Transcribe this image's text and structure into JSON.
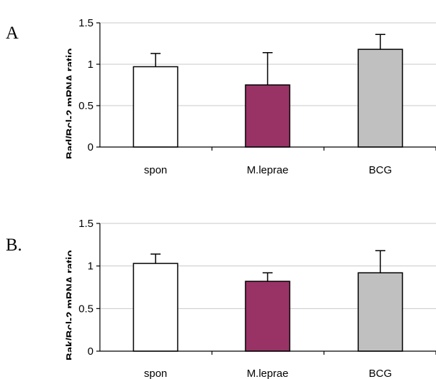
{
  "chart_data": [
    {
      "type": "bar",
      "panel_label": "A",
      "ylabel": "Bad/Bcl-2 mRNA ratio",
      "categories": [
        "spon",
        "M.leprae",
        "BCG"
      ],
      "values": [
        0.97,
        0.75,
        1.18
      ],
      "error_upper": [
        0.16,
        0.39,
        0.18
      ],
      "colors": [
        "#ffffff",
        "#993366",
        "#c0c0c0"
      ],
      "ylim": [
        0,
        1.5
      ],
      "yticks": [
        0,
        0.5,
        1,
        1.5
      ],
      "ytick_labels": [
        "0",
        "0.5",
        "1",
        "1.5"
      ],
      "grid": true
    },
    {
      "type": "bar",
      "panel_label": "B.",
      "ylabel": "Bak/Bcl-2 mRNA ratio",
      "categories": [
        "spon",
        "M.leprae",
        "BCG"
      ],
      "values": [
        1.03,
        0.82,
        0.92
      ],
      "error_upper": [
        0.11,
        0.1,
        0.26
      ],
      "colors": [
        "#ffffff",
        "#993366",
        "#c0c0c0"
      ],
      "ylim": [
        0,
        1.5
      ],
      "yticks": [
        0,
        0.5,
        1,
        1.5
      ],
      "ytick_labels": [
        "0",
        "0.5",
        "1",
        "1.5"
      ],
      "grid": true
    }
  ]
}
